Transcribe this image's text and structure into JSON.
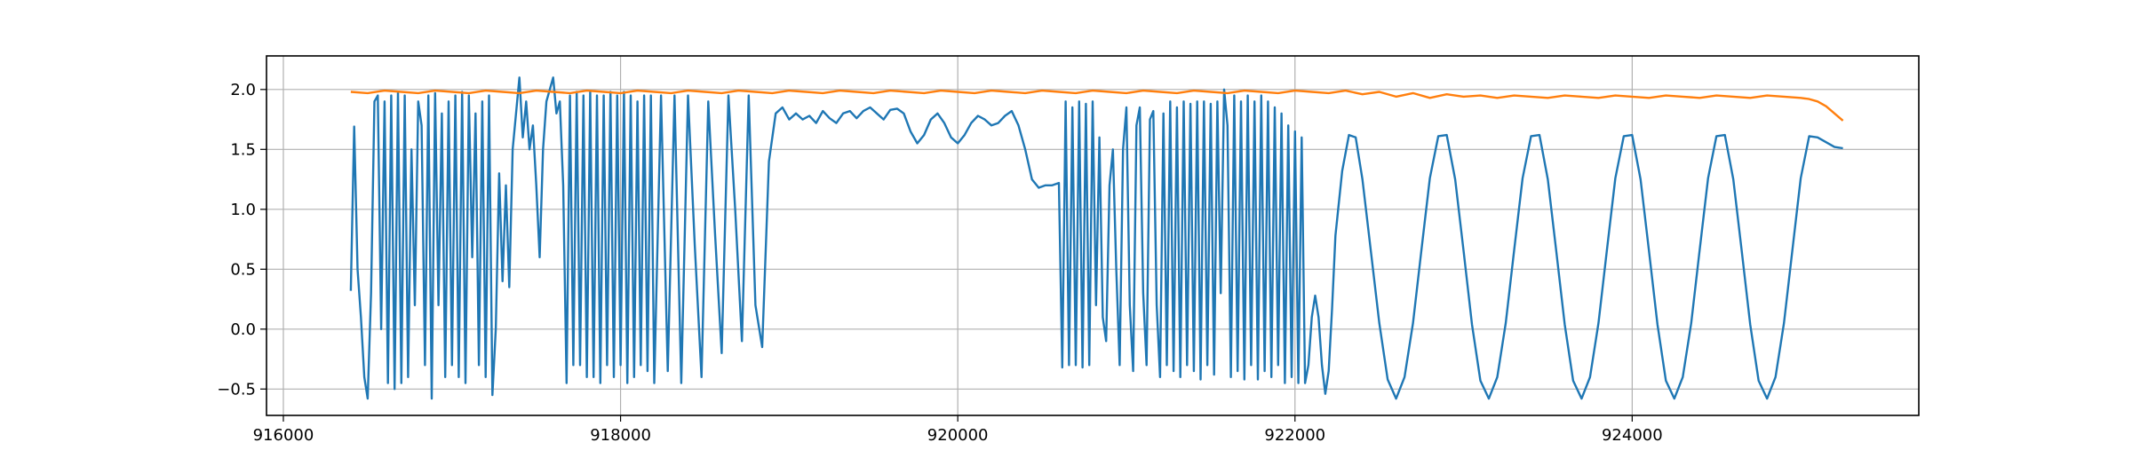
{
  "chart_data": {
    "type": "line",
    "title": "",
    "xlabel": "",
    "ylabel": "",
    "xlim": [
      915900,
      925700
    ],
    "ylim": [
      -0.72,
      2.28
    ],
    "x_ticks": [
      916000,
      918000,
      920000,
      922000,
      924000
    ],
    "x_tick_labels": [
      "916000",
      "918000",
      "920000",
      "922000",
      "924000"
    ],
    "y_ticks": [
      -0.5,
      0.0,
      0.5,
      1.0,
      1.5,
      2.0
    ],
    "y_tick_labels": [
      "−0.5",
      "0.0",
      "0.5",
      "1.0",
      "1.5",
      "2.0"
    ],
    "grid": true,
    "legend": "none",
    "series": [
      {
        "color": "#1f77b4",
        "x": [
          916400,
          916420,
          916440,
          916460,
          916480,
          916500,
          916520,
          916540,
          916560,
          916580,
          916600,
          916620,
          916640,
          916660,
          916680,
          916700,
          916720,
          916740,
          916760,
          916780,
          916800,
          916820,
          916840,
          916860,
          916880,
          916900,
          916920,
          916940,
          916960,
          916980,
          917000,
          917020,
          917040,
          917060,
          917080,
          917100,
          917120,
          917140,
          917160,
          917180,
          917200,
          917220,
          917240,
          917260,
          917280,
          917300,
          917320,
          917340,
          917360,
          917380,
          917400,
          917420,
          917440,
          917460,
          917480,
          917500,
          917520,
          917540,
          917560,
          917580,
          917600,
          917620,
          917640,
          917660,
          917680,
          917700,
          917720,
          917740,
          917760,
          917780,
          917800,
          917820,
          917840,
          917860,
          917880,
          917900,
          917920,
          917940,
          917960,
          917980,
          918000,
          918020,
          918040,
          918060,
          918080,
          918100,
          918120,
          918140,
          918160,
          918180,
          918200,
          918240,
          918280,
          918320,
          918360,
          918400,
          918440,
          918480,
          918520,
          918560,
          918600,
          918640,
          918680,
          918720,
          918760,
          918800,
          918840,
          918880,
          918920,
          918960,
          919000,
          919040,
          919080,
          919120,
          919160,
          919200,
          919240,
          919280,
          919320,
          919360,
          919400,
          919440,
          919480,
          919520,
          919560,
          919600,
          919640,
          919680,
          919720,
          919760,
          919800,
          919840,
          919880,
          919920,
          919960,
          920000,
          920040,
          920080,
          920120,
          920160,
          920200,
          920240,
          920280,
          920320,
          920360,
          920400,
          920440,
          920480,
          920520,
          920560,
          920600,
          920620,
          920640,
          920660,
          920680,
          920700,
          920720,
          920740,
          920760,
          920780,
          920800,
          920820,
          920840,
          920860,
          920880,
          920900,
          920920,
          920940,
          920960,
          920980,
          921000,
          921020,
          921040,
          921060,
          921080,
          921100,
          921120,
          921140,
          921160,
          921180,
          921200,
          921220,
          921240,
          921260,
          921280,
          921300,
          921320,
          921340,
          921360,
          921380,
          921400,
          921420,
          921440,
          921460,
          921480,
          921500,
          921520,
          921540,
          921560,
          921580,
          921600,
          921620,
          921640,
          921660,
          921680,
          921700,
          921720,
          921740,
          921760,
          921780,
          921800,
          921820,
          921840,
          921860,
          921880,
          921900,
          921920,
          921940,
          921960,
          921980,
          922000,
          922020,
          922040,
          922060,
          922080,
          922100,
          922120,
          922140,
          922160,
          922180,
          922200,
          922220,
          922240,
          922280,
          922320,
          922360,
          922400,
          922450,
          922500,
          922550,
          922600,
          922650,
          922700,
          922750,
          922800,
          922850,
          922900,
          922950,
          923000,
          923050,
          923100,
          923150,
          923200,
          923250,
          923300,
          923350,
          923400,
          923450,
          923500,
          923550,
          923600,
          923650,
          923700,
          923750,
          923800,
          923850,
          923900,
          923950,
          924000,
          924050,
          924100,
          924150,
          924200,
          924250,
          924300,
          924350,
          924400,
          924450,
          924500,
          924550,
          924600,
          924650,
          924700,
          924750,
          924800,
          924850,
          924900,
          924950,
          925000,
          925050,
          925100,
          925150,
          925200,
          925250
        ],
        "y": [
          0.32,
          1.69,
          0.5,
          0.1,
          -0.4,
          -0.58,
          0.3,
          1.9,
          1.95,
          0.0,
          1.9,
          -0.45,
          1.95,
          -0.5,
          1.98,
          -0.45,
          1.95,
          -0.4,
          1.5,
          0.2,
          1.9,
          1.7,
          -0.3,
          1.95,
          -0.58,
          1.97,
          0.2,
          1.8,
          -0.4,
          1.9,
          -0.3,
          1.95,
          -0.4,
          1.98,
          -0.45,
          1.95,
          0.6,
          1.8,
          -0.3,
          1.9,
          -0.4,
          1.95,
          -0.55,
          0.0,
          1.3,
          0.4,
          1.2,
          0.35,
          1.5,
          1.8,
          2.1,
          1.6,
          1.9,
          1.5,
          1.7,
          1.2,
          0.6,
          1.5,
          1.9,
          2.0,
          2.1,
          1.8,
          1.9,
          1.2,
          -0.45,
          1.95,
          -0.3,
          1.98,
          -0.3,
          1.95,
          -0.4,
          1.98,
          -0.4,
          1.95,
          -0.45,
          1.95,
          -0.3,
          1.98,
          -0.4,
          1.95,
          -0.3,
          1.98,
          -0.45,
          1.95,
          -0.4,
          1.9,
          -0.3,
          1.95,
          -0.35,
          1.95,
          -0.45,
          1.95,
          -0.35,
          1.95,
          -0.45,
          1.95,
          0.7,
          -0.4,
          1.9,
          0.8,
          -0.2,
          1.95,
          1.0,
          -0.1,
          1.95,
          0.2,
          -0.15,
          1.4,
          1.8,
          1.85,
          1.75,
          1.8,
          1.75,
          1.78,
          1.72,
          1.82,
          1.76,
          1.72,
          1.8,
          1.82,
          1.76,
          1.82,
          1.85,
          1.8,
          1.75,
          1.83,
          1.84,
          1.8,
          1.65,
          1.55,
          1.62,
          1.75,
          1.8,
          1.72,
          1.6,
          1.55,
          1.62,
          1.72,
          1.78,
          1.75,
          1.7,
          1.72,
          1.78,
          1.82,
          1.7,
          1.5,
          1.25,
          1.18,
          1.2,
          1.2,
          1.22,
          -0.32,
          1.9,
          -0.3,
          1.85,
          -0.3,
          1.9,
          -0.32,
          1.88,
          -0.3,
          1.9,
          0.2,
          1.6,
          0.1,
          -0.1,
          1.2,
          1.5,
          0.5,
          -0.3,
          1.5,
          1.85,
          0.2,
          -0.35,
          1.7,
          1.85,
          0.3,
          -0.3,
          1.75,
          1.82,
          0.2,
          -0.4,
          1.8,
          -0.3,
          1.9,
          -0.35,
          1.85,
          -0.4,
          1.9,
          -0.3,
          1.88,
          -0.35,
          1.9,
          -0.42,
          1.9,
          -0.3,
          1.88,
          -0.38,
          1.9,
          0.3,
          2.0,
          1.7,
          -0.4,
          1.95,
          -0.35,
          1.9,
          -0.42,
          1.95,
          -0.3,
          1.9,
          -0.42,
          1.95,
          -0.35,
          1.9,
          -0.4,
          1.85,
          -0.3,
          1.8,
          -0.45,
          1.7,
          -0.4,
          1.65,
          -0.45,
          1.6,
          -0.45,
          -0.3,
          0.1,
          0.28,
          0.1,
          -0.3,
          -0.54,
          -0.35,
          0.17,
          0.78,
          1.32,
          1.62,
          1.6,
          1.25,
          0.65,
          0.05,
          -0.42,
          -0.58,
          -0.4,
          0.05,
          0.66,
          1.26,
          1.61,
          1.62,
          1.25,
          0.65,
          0.04,
          -0.43,
          -0.58,
          -0.4,
          0.05,
          0.66,
          1.26,
          1.61,
          1.62,
          1.25,
          0.65,
          0.04,
          -0.43,
          -0.58,
          -0.4,
          0.05,
          0.66,
          1.26,
          1.61,
          1.62,
          1.25,
          0.65,
          0.04,
          -0.43,
          -0.58,
          -0.4,
          0.05,
          0.66,
          1.26,
          1.61,
          1.62,
          1.25,
          0.65,
          0.04,
          -0.43,
          -0.58,
          -0.4,
          0.05,
          0.66,
          1.26,
          1.61,
          1.6,
          1.56,
          1.52,
          1.51
        ]
      },
      {
        "color": "#ff7f0e",
        "x": [
          916400,
          916500,
          916600,
          916700,
          916800,
          916900,
          917000,
          917100,
          917200,
          917300,
          917400,
          917500,
          917600,
          917700,
          917800,
          917900,
          918000,
          918100,
          918200,
          918300,
          918400,
          918500,
          918600,
          918700,
          918800,
          918900,
          919000,
          919100,
          919200,
          919300,
          919400,
          919500,
          919600,
          919700,
          919800,
          919900,
          920000,
          920100,
          920200,
          920300,
          920400,
          920500,
          920600,
          920700,
          920800,
          920900,
          921000,
          921100,
          921200,
          921300,
          921400,
          921500,
          921600,
          921700,
          921800,
          921900,
          922000,
          922100,
          922200,
          922300,
          922400,
          922500,
          922600,
          922700,
          922800,
          922900,
          923000,
          923100,
          923200,
          923300,
          923400,
          923500,
          923600,
          923700,
          923800,
          923900,
          924000,
          924100,
          924200,
          924300,
          924400,
          924500,
          924600,
          924700,
          924800,
          924900,
          925000,
          925050,
          925100,
          925150,
          925200,
          925250
        ],
        "y": [
          1.98,
          1.97,
          1.99,
          1.98,
          1.97,
          1.99,
          1.98,
          1.97,
          1.99,
          1.98,
          1.97,
          1.99,
          1.98,
          1.97,
          1.99,
          1.98,
          1.97,
          1.99,
          1.98,
          1.97,
          1.99,
          1.98,
          1.97,
          1.99,
          1.98,
          1.97,
          1.99,
          1.98,
          1.97,
          1.99,
          1.98,
          1.97,
          1.99,
          1.98,
          1.97,
          1.99,
          1.98,
          1.97,
          1.99,
          1.98,
          1.97,
          1.99,
          1.98,
          1.97,
          1.99,
          1.98,
          1.97,
          1.99,
          1.98,
          1.97,
          1.99,
          1.98,
          1.97,
          1.99,
          1.98,
          1.97,
          1.99,
          1.98,
          1.97,
          1.99,
          1.96,
          1.98,
          1.94,
          1.97,
          1.93,
          1.96,
          1.94,
          1.95,
          1.93,
          1.95,
          1.94,
          1.93,
          1.95,
          1.94,
          1.93,
          1.95,
          1.94,
          1.93,
          1.95,
          1.94,
          1.93,
          1.95,
          1.94,
          1.93,
          1.95,
          1.94,
          1.93,
          1.92,
          1.9,
          1.86,
          1.8,
          1.74
        ]
      }
    ]
  }
}
